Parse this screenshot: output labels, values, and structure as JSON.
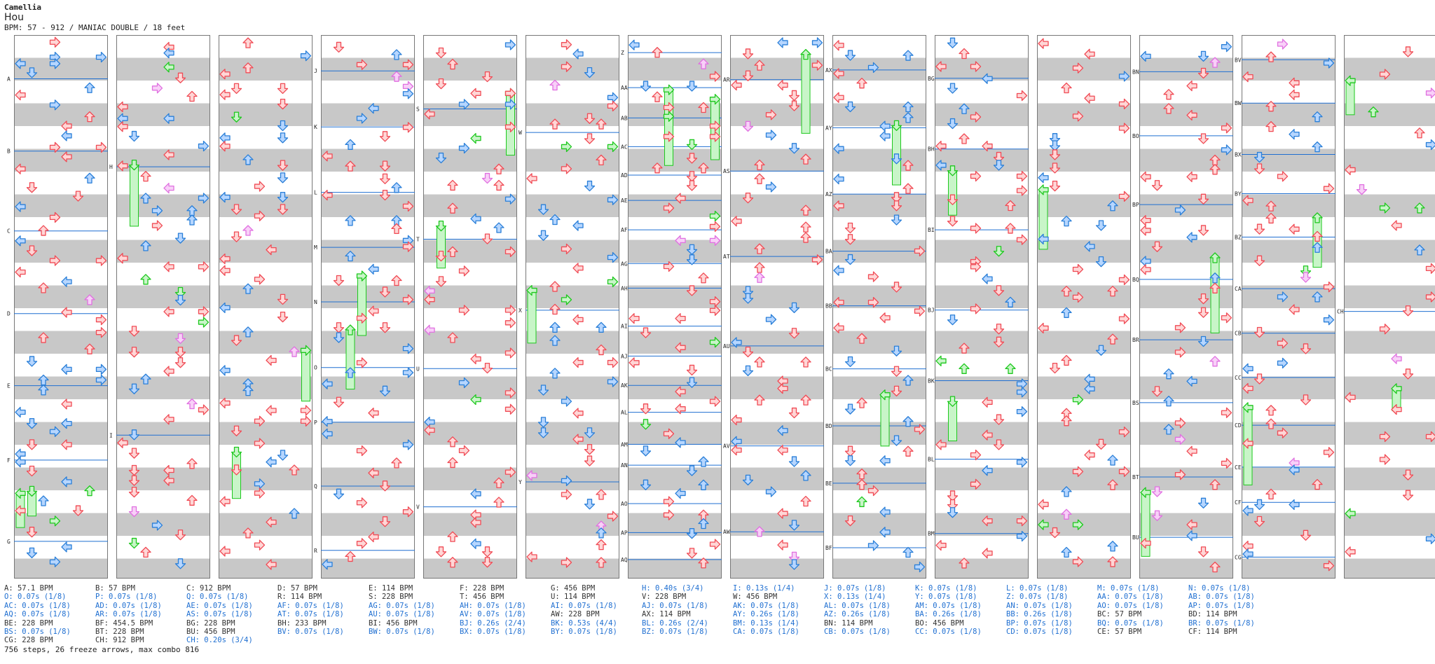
{
  "header": {
    "artist": "Camellia",
    "title": "Hou",
    "meta": "BPM: 57 - 912 / MANIAC DOUBLE / 18 feet"
  },
  "colors": {
    "red_arrow": "#f04b55",
    "red_fill": "#ffd6d6",
    "blue_arrow": "#2a7fd8",
    "blue_fill": "#b6d6ff",
    "green_arrow": "#1ec81e",
    "green_fill": "#c8f5c8",
    "pink_arrow": "#e070e0",
    "pink_fill": "#f8d0f8",
    "stripe": "#c8c8c8",
    "bpm_line": "#1f6fd1"
  },
  "marker_labels": {
    "col0": [
      "A",
      "B",
      "C",
      "D",
      "E",
      "F",
      "G"
    ],
    "col1": [
      "H",
      "I"
    ],
    "col3": [
      "J",
      "K",
      "L",
      "M",
      "N",
      "O",
      "P",
      "Q",
      "R"
    ],
    "col4": [
      "S",
      "T",
      "U",
      "V"
    ],
    "col5": [
      "W",
      "X",
      "Y"
    ],
    "col6": [
      "Z",
      "AA",
      "AB",
      "AC",
      "AD",
      "AE",
      "AF",
      "AG",
      "AH",
      "AI",
      "AJ",
      "AK",
      "AL",
      "AM",
      "AN",
      "AO",
      "AP",
      "AQ"
    ],
    "col7": [
      "AR",
      "AS",
      "AT",
      "AU",
      "AV",
      "AW"
    ],
    "col8": [
      "AX",
      "AY",
      "AZ",
      "BA",
      "BB",
      "BC",
      "BD",
      "BE",
      "BF"
    ],
    "col9": [
      "BG",
      "BH",
      "BI",
      "BJ",
      "BK",
      "BL",
      "BM"
    ],
    "col11": [
      "BN",
      "BO",
      "BP",
      "BQ",
      "BR",
      "BS",
      "BT",
      "BU"
    ],
    "col12": [
      "BV",
      "BW",
      "BX",
      "BY",
      "BZ",
      "CA",
      "CB",
      "CC",
      "CD",
      "CE",
      "CF",
      "CG"
    ],
    "col13": [
      "CH"
    ]
  },
  "legend": [
    [
      {
        "t": "A: 57.1 BPM",
        "k": "bpm"
      },
      {
        "t": "O: 0.07s (1/8)",
        "k": "stop"
      },
      {
        "t": "AC: 0.07s (1/8)",
        "k": "stop"
      },
      {
        "t": "AQ: 0.07s (1/8)",
        "k": "stop"
      },
      {
        "t": "BE: 228 BPM",
        "k": "bpm"
      },
      {
        "t": "BS: 0.07s (1/8)",
        "k": "stop"
      },
      {
        "t": "CG: 228 BPM",
        "k": "bpm"
      }
    ],
    [
      {
        "t": "B: 57 BPM",
        "k": "bpm"
      },
      {
        "t": "P: 0.07s (1/8)",
        "k": "stop"
      },
      {
        "t": "AD: 0.07s (1/8)",
        "k": "stop"
      },
      {
        "t": "AR: 0.07s (1/8)",
        "k": "stop"
      },
      {
        "t": "BF: 454.5 BPM",
        "k": "bpm"
      },
      {
        "t": "BT: 228 BPM",
        "k": "bpm"
      },
      {
        "t": "CH: 912 BPM",
        "k": "bpm"
      }
    ],
    [
      {
        "t": "C: 912 BPM",
        "k": "bpm"
      },
      {
        "t": "Q: 0.07s (1/8)",
        "k": "stop"
      },
      {
        "t": "AE: 0.07s (1/8)",
        "k": "stop"
      },
      {
        "t": "AS: 0.07s (1/8)",
        "k": "stop"
      },
      {
        "t": "BG: 228 BPM",
        "k": "bpm"
      },
      {
        "t": "BU: 456 BPM",
        "k": "bpm"
      },
      {
        "t": "CH: 0.20s (3/4)",
        "k": "stop"
      }
    ],
    [
      {
        "t": "D: 57 BPM",
        "k": "bpm"
      },
      {
        "t": "R: 114 BPM",
        "k": "bpm"
      },
      {
        "t": "AF: 0.07s (1/8)",
        "k": "stop"
      },
      {
        "t": "AT: 0.07s (1/8)",
        "k": "stop"
      },
      {
        "t": "BH: 233 BPM",
        "k": "bpm"
      },
      {
        "t": "BV: 0.07s (1/8)",
        "k": "stop"
      }
    ],
    [
      {
        "t": "E: 114 BPM",
        "k": "bpm"
      },
      {
        "t": "S: 228 BPM",
        "k": "bpm"
      },
      {
        "t": "AG: 0.07s (1/8)",
        "k": "stop"
      },
      {
        "t": "AU: 0.07s (1/8)",
        "k": "stop"
      },
      {
        "t": "BI: 456 BPM",
        "k": "bpm"
      },
      {
        "t": "BW: 0.07s (1/8)",
        "k": "stop"
      }
    ],
    [
      {
        "t": "F: 228 BPM",
        "k": "bpm"
      },
      {
        "t": "T: 456 BPM",
        "k": "bpm"
      },
      {
        "t": "AH: 0.07s (1/8)",
        "k": "stop"
      },
      {
        "t": "AV: 0.07s (1/8)",
        "k": "stop"
      },
      {
        "t": "BJ: 0.26s (2/4)",
        "k": "stop"
      },
      {
        "t": "BX: 0.07s (1/8)",
        "k": "stop"
      }
    ],
    [
      {
        "t": "G: 456 BPM",
        "k": "bpm"
      },
      {
        "t": "U: 114 BPM",
        "k": "bpm"
      },
      {
        "t": "AI: 0.07s (1/8)",
        "k": "stop"
      },
      {
        "t": "AW: 228 BPM",
        "k": "bpm"
      },
      {
        "t": "BK: 0.53s (4/4)",
        "k": "stop"
      },
      {
        "t": "BY: 0.07s (1/8)",
        "k": "stop"
      }
    ],
    [
      {
        "t": "H: 0.40s (3/4)",
        "k": "stop"
      },
      {
        "t": "V: 228 BPM",
        "k": "bpm"
      },
      {
        "t": "AJ: 0.07s (1/8)",
        "k": "stop"
      },
      {
        "t": "AX: 114 BPM",
        "k": "bpm"
      },
      {
        "t": "BL: 0.26s (2/4)",
        "k": "stop"
      },
      {
        "t": "BZ: 0.07s (1/8)",
        "k": "stop"
      }
    ],
    [
      {
        "t": "I: 0.13s (1/4)",
        "k": "stop"
      },
      {
        "t": "W: 456 BPM",
        "k": "bpm"
      },
      {
        "t": "AK: 0.07s (1/8)",
        "k": "stop"
      },
      {
        "t": "AY: 0.26s (1/8)",
        "k": "stop"
      },
      {
        "t": "BM: 0.13s (1/4)",
        "k": "stop"
      },
      {
        "t": "CA: 0.07s (1/8)",
        "k": "stop"
      }
    ],
    [
      {
        "t": "J: 0.07s (1/8)",
        "k": "stop"
      },
      {
        "t": "X: 0.13s (1/4)",
        "k": "stop"
      },
      {
        "t": "AL: 0.07s (1/8)",
        "k": "stop"
      },
      {
        "t": "AZ: 0.26s (1/8)",
        "k": "stop"
      },
      {
        "t": "BN: 114 BPM",
        "k": "bpm"
      },
      {
        "t": "CB: 0.07s (1/8)",
        "k": "stop"
      }
    ],
    [
      {
        "t": "K: 0.07s (1/8)",
        "k": "stop"
      },
      {
        "t": "Y: 0.07s (1/8)",
        "k": "stop"
      },
      {
        "t": "AM: 0.07s (1/8)",
        "k": "stop"
      },
      {
        "t": "BA: 0.26s (1/8)",
        "k": "stop"
      },
      {
        "t": "BO: 456 BPM",
        "k": "bpm"
      },
      {
        "t": "CC: 0.07s (1/8)",
        "k": "stop"
      }
    ],
    [
      {
        "t": "L: 0.07s (1/8)",
        "k": "stop"
      },
      {
        "t": "Z: 0.07s (1/8)",
        "k": "stop"
      },
      {
        "t": "AN: 0.07s (1/8)",
        "k": "stop"
      },
      {
        "t": "BB: 0.26s (1/8)",
        "k": "stop"
      },
      {
        "t": "BP: 0.07s (1/8)",
        "k": "stop"
      },
      {
        "t": "CD: 0.07s (1/8)",
        "k": "stop"
      }
    ],
    [
      {
        "t": "M: 0.07s (1/8)",
        "k": "stop"
      },
      {
        "t": "AA: 0.07s (1/8)",
        "k": "stop"
      },
      {
        "t": "AO: 0.07s (1/8)",
        "k": "stop"
      },
      {
        "t": "BC: 57 BPM",
        "k": "bpm"
      },
      {
        "t": "BQ: 0.07s (1/8)",
        "k": "stop"
      },
      {
        "t": "CE: 57 BPM",
        "k": "bpm"
      }
    ],
    [
      {
        "t": "N: 0.07s (1/8)",
        "k": "stop"
      },
      {
        "t": "AB: 0.07s (1/8)",
        "k": "stop"
      },
      {
        "t": "AP: 0.07s (1/8)",
        "k": "stop"
      },
      {
        "t": "BD: 114 BPM",
        "k": "bpm"
      },
      {
        "t": "BR: 0.07s (1/8)",
        "k": "stop"
      },
      {
        "t": "CF: 114 BPM",
        "k": "bpm"
      }
    ]
  ],
  "footer": "756 steps, 26 freeze arrows, max combo 816"
}
